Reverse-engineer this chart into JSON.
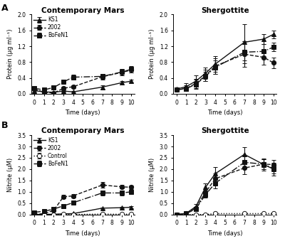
{
  "time": [
    0,
    1,
    2,
    3,
    4,
    7,
    9,
    10
  ],
  "A_cm_KS1_y": [
    0.08,
    0.05,
    0.04,
    0.07,
    0.05,
    0.17,
    0.28,
    0.32
  ],
  "A_cm_KS1_err": [
    0.02,
    0.02,
    0.02,
    0.02,
    0.02,
    0.04,
    0.05,
    0.04
  ],
  "A_cm_2002_y": [
    0.12,
    0.04,
    0.02,
    0.14,
    0.18,
    0.43,
    0.54,
    0.6
  ],
  "A_cm_2002_err": [
    0.02,
    0.01,
    0.01,
    0.04,
    0.04,
    0.08,
    0.08,
    0.07
  ],
  "A_cm_Bo_y": [
    0.14,
    0.1,
    0.16,
    0.3,
    0.42,
    0.44,
    0.55,
    0.62
  ],
  "A_cm_Bo_err": [
    0.03,
    0.02,
    0.04,
    0.04,
    0.06,
    0.06,
    0.08,
    0.08
  ],
  "A_sh_KS1_y": [
    0.12,
    0.18,
    0.32,
    0.52,
    0.75,
    1.3,
    1.38,
    1.5
  ],
  "A_sh_KS1_err": [
    0.04,
    0.08,
    0.14,
    0.14,
    0.2,
    0.45,
    0.12,
    0.1
  ],
  "A_sh_2002_y": [
    0.1,
    0.14,
    0.26,
    0.46,
    0.7,
    1.0,
    0.92,
    0.78
  ],
  "A_sh_2002_err": [
    0.03,
    0.07,
    0.12,
    0.14,
    0.2,
    0.32,
    0.18,
    0.14
  ],
  "A_sh_Bo_y": [
    0.1,
    0.13,
    0.24,
    0.44,
    0.67,
    1.05,
    1.07,
    1.18
  ],
  "A_sh_Bo_err": [
    0.03,
    0.05,
    0.11,
    0.11,
    0.17,
    0.28,
    0.18,
    0.11
  ],
  "B_cm_KS1_y": [
    0.0,
    0.01,
    0.01,
    0.03,
    0.04,
    0.28,
    0.3,
    0.32
  ],
  "B_cm_KS1_err": [
    0.0,
    0.005,
    0.005,
    0.01,
    0.01,
    0.04,
    0.04,
    0.04
  ],
  "B_cm_2002_y": [
    0.0,
    0.04,
    0.18,
    0.78,
    0.82,
    1.3,
    1.22,
    1.2
  ],
  "B_cm_2002_err": [
    0.0,
    0.01,
    0.04,
    0.08,
    0.08,
    0.12,
    0.08,
    0.08
  ],
  "B_cm_ctrl_y": [
    0.0,
    0.0,
    0.0,
    0.01,
    0.0,
    0.02,
    0.01,
    0.02
  ],
  "B_cm_ctrl_err": [
    0.0,
    0.0,
    0.0,
    0.005,
    0.0,
    0.005,
    0.005,
    0.005
  ],
  "B_cm_Bo_y": [
    0.1,
    0.14,
    0.24,
    0.38,
    0.52,
    0.95,
    0.95,
    1.0
  ],
  "B_cm_Bo_err": [
    0.02,
    0.02,
    0.04,
    0.06,
    0.06,
    0.1,
    0.1,
    0.08
  ],
  "B_sh_KS1_y": [
    0.0,
    0.05,
    0.35,
    1.2,
    1.8,
    2.65,
    2.2,
    2.0
  ],
  "B_sh_KS1_err": [
    0.0,
    0.02,
    0.1,
    0.18,
    0.28,
    0.32,
    0.28,
    0.28
  ],
  "B_sh_2002_y": [
    0.0,
    0.04,
    0.28,
    0.98,
    1.58,
    2.05,
    2.22,
    2.2
  ],
  "B_sh_2002_err": [
    0.0,
    0.01,
    0.07,
    0.14,
    0.22,
    0.28,
    0.22,
    0.22
  ],
  "B_sh_ctrl_y": [
    0.0,
    0.0,
    0.0,
    0.0,
    0.04,
    0.04,
    0.04,
    0.04
  ],
  "B_sh_ctrl_err": [
    0.0,
    0.0,
    0.0,
    0.0,
    0.015,
    0.015,
    0.015,
    0.015
  ],
  "B_sh_Bo_y": [
    0.0,
    0.04,
    0.24,
    0.88,
    1.38,
    2.3,
    2.22,
    2.02
  ],
  "B_sh_Bo_err": [
    0.0,
    0.01,
    0.07,
    0.14,
    0.22,
    0.28,
    0.22,
    0.22
  ],
  "A_ylim": [
    0.0,
    2.0
  ],
  "B_ylim": [
    0.0,
    3.5
  ],
  "A_yticks": [
    0.0,
    0.4,
    0.8,
    1.2,
    1.6,
    2.0
  ],
  "B_yticks": [
    0.0,
    0.5,
    1.0,
    1.5,
    2.0,
    2.5,
    3.0,
    3.5
  ],
  "xticks": [
    0,
    1,
    2,
    3,
    4,
    5,
    6,
    7,
    8,
    9,
    10
  ],
  "xlim": [
    -0.3,
    10.3
  ],
  "title_A_cm": "Contemporary Mars",
  "title_A_sh": "Shergottite",
  "title_B_cm": "Contemporary Mars",
  "title_B_sh": "Shergottite",
  "ylabel_A": "Protein (μg ml⁻¹)",
  "ylabel_B": "Nitrite (μM)",
  "xlabel": "Time (days)",
  "lw": 1.0,
  "ms": 4.5,
  "cs": 2,
  "elw": 0.8,
  "title_fs": 7.5,
  "label_fs": 6,
  "tick_fs": 5.5,
  "legend_fs": 5.5
}
